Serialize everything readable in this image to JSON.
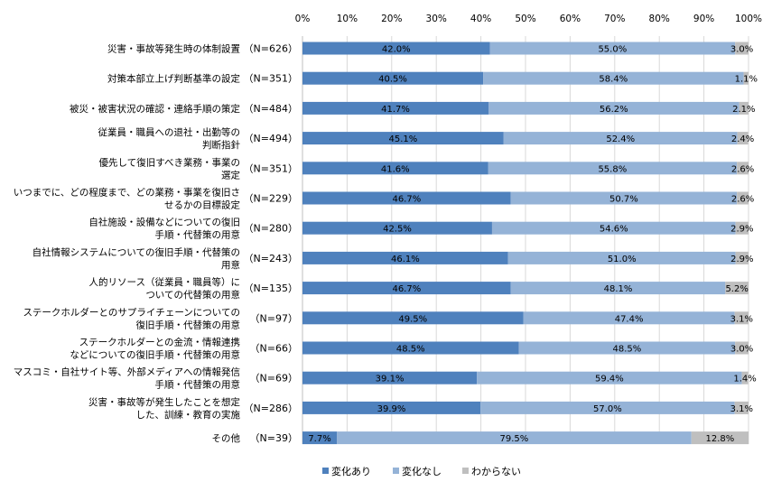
{
  "chart_data": {
    "type": "bar",
    "stacked": true,
    "orientation": "horizontal",
    "percent_stacked": true,
    "xlim": [
      0,
      100
    ],
    "x_ticks": [
      "0%",
      "10%",
      "20%",
      "30%",
      "40%",
      "50%",
      "60%",
      "70%",
      "80%",
      "90%",
      "100%"
    ],
    "grid": true,
    "legend_position": "bottom",
    "categories": [
      [
        "災害・事故等発生時の体制設置"
      ],
      [
        "対策本部立上げ判断基準の設定"
      ],
      [
        "被災・被害状況の確認・連絡手順の策定"
      ],
      [
        "従業員・職員への退社・出勤等の",
        "判断指針"
      ],
      [
        "優先して復旧すべき業務・事業の",
        "選定"
      ],
      [
        "いつまでに、どの程度まで、どの業務・事業を復旧さ",
        "せるかの目標設定"
      ],
      [
        "自社施設・設備などについての復旧",
        "手順・代替策の用意"
      ],
      [
        "自社情報システムについての復旧手順・代替策の",
        "用意"
      ],
      [
        "人的リソース（従業員・職員等）に",
        "ついての代替策の用意"
      ],
      [
        "ステークホルダーとのサプライチェーンについての",
        "復旧手順・代替策の用意"
      ],
      [
        "ステークホルダーとの金流・情報連携",
        "などについての復旧手順・代替策の用意"
      ],
      [
        "マスコミ・自社サイト等、外部メディアへの情報発信",
        "手順・代替策の用意"
      ],
      [
        "災害・事故等が発生したことを想定",
        "した、訓練・教育の実施"
      ],
      [
        "その他"
      ]
    ],
    "n_labels": [
      "（N=626）",
      "（N=351）",
      "（N=484）",
      "（N=494）",
      "（N=351）",
      "（N=229）",
      "（N=280）",
      "（N=243）",
      "（N=135）",
      "（N=97）",
      "（N=66）",
      "（N=69）",
      "（N=286）",
      "（N=39）"
    ],
    "series": [
      {
        "name": "変化あり",
        "color": "#4f81bd",
        "values": [
          42.0,
          40.5,
          41.7,
          45.1,
          41.6,
          46.7,
          42.5,
          46.1,
          46.7,
          49.5,
          48.5,
          39.1,
          39.9,
          7.7
        ]
      },
      {
        "name": "変化なし",
        "color": "#95b3d7",
        "values": [
          55.0,
          58.4,
          56.2,
          52.4,
          55.8,
          50.7,
          54.6,
          51.0,
          48.1,
          47.4,
          48.5,
          59.4,
          57.0,
          79.5
        ]
      },
      {
        "name": "わからない",
        "color": "#bfbfbf",
        "values": [
          3.0,
          1.1,
          2.1,
          2.4,
          2.6,
          2.6,
          2.9,
          2.9,
          5.2,
          3.1,
          3.0,
          1.4,
          3.1,
          12.8
        ]
      }
    ]
  }
}
